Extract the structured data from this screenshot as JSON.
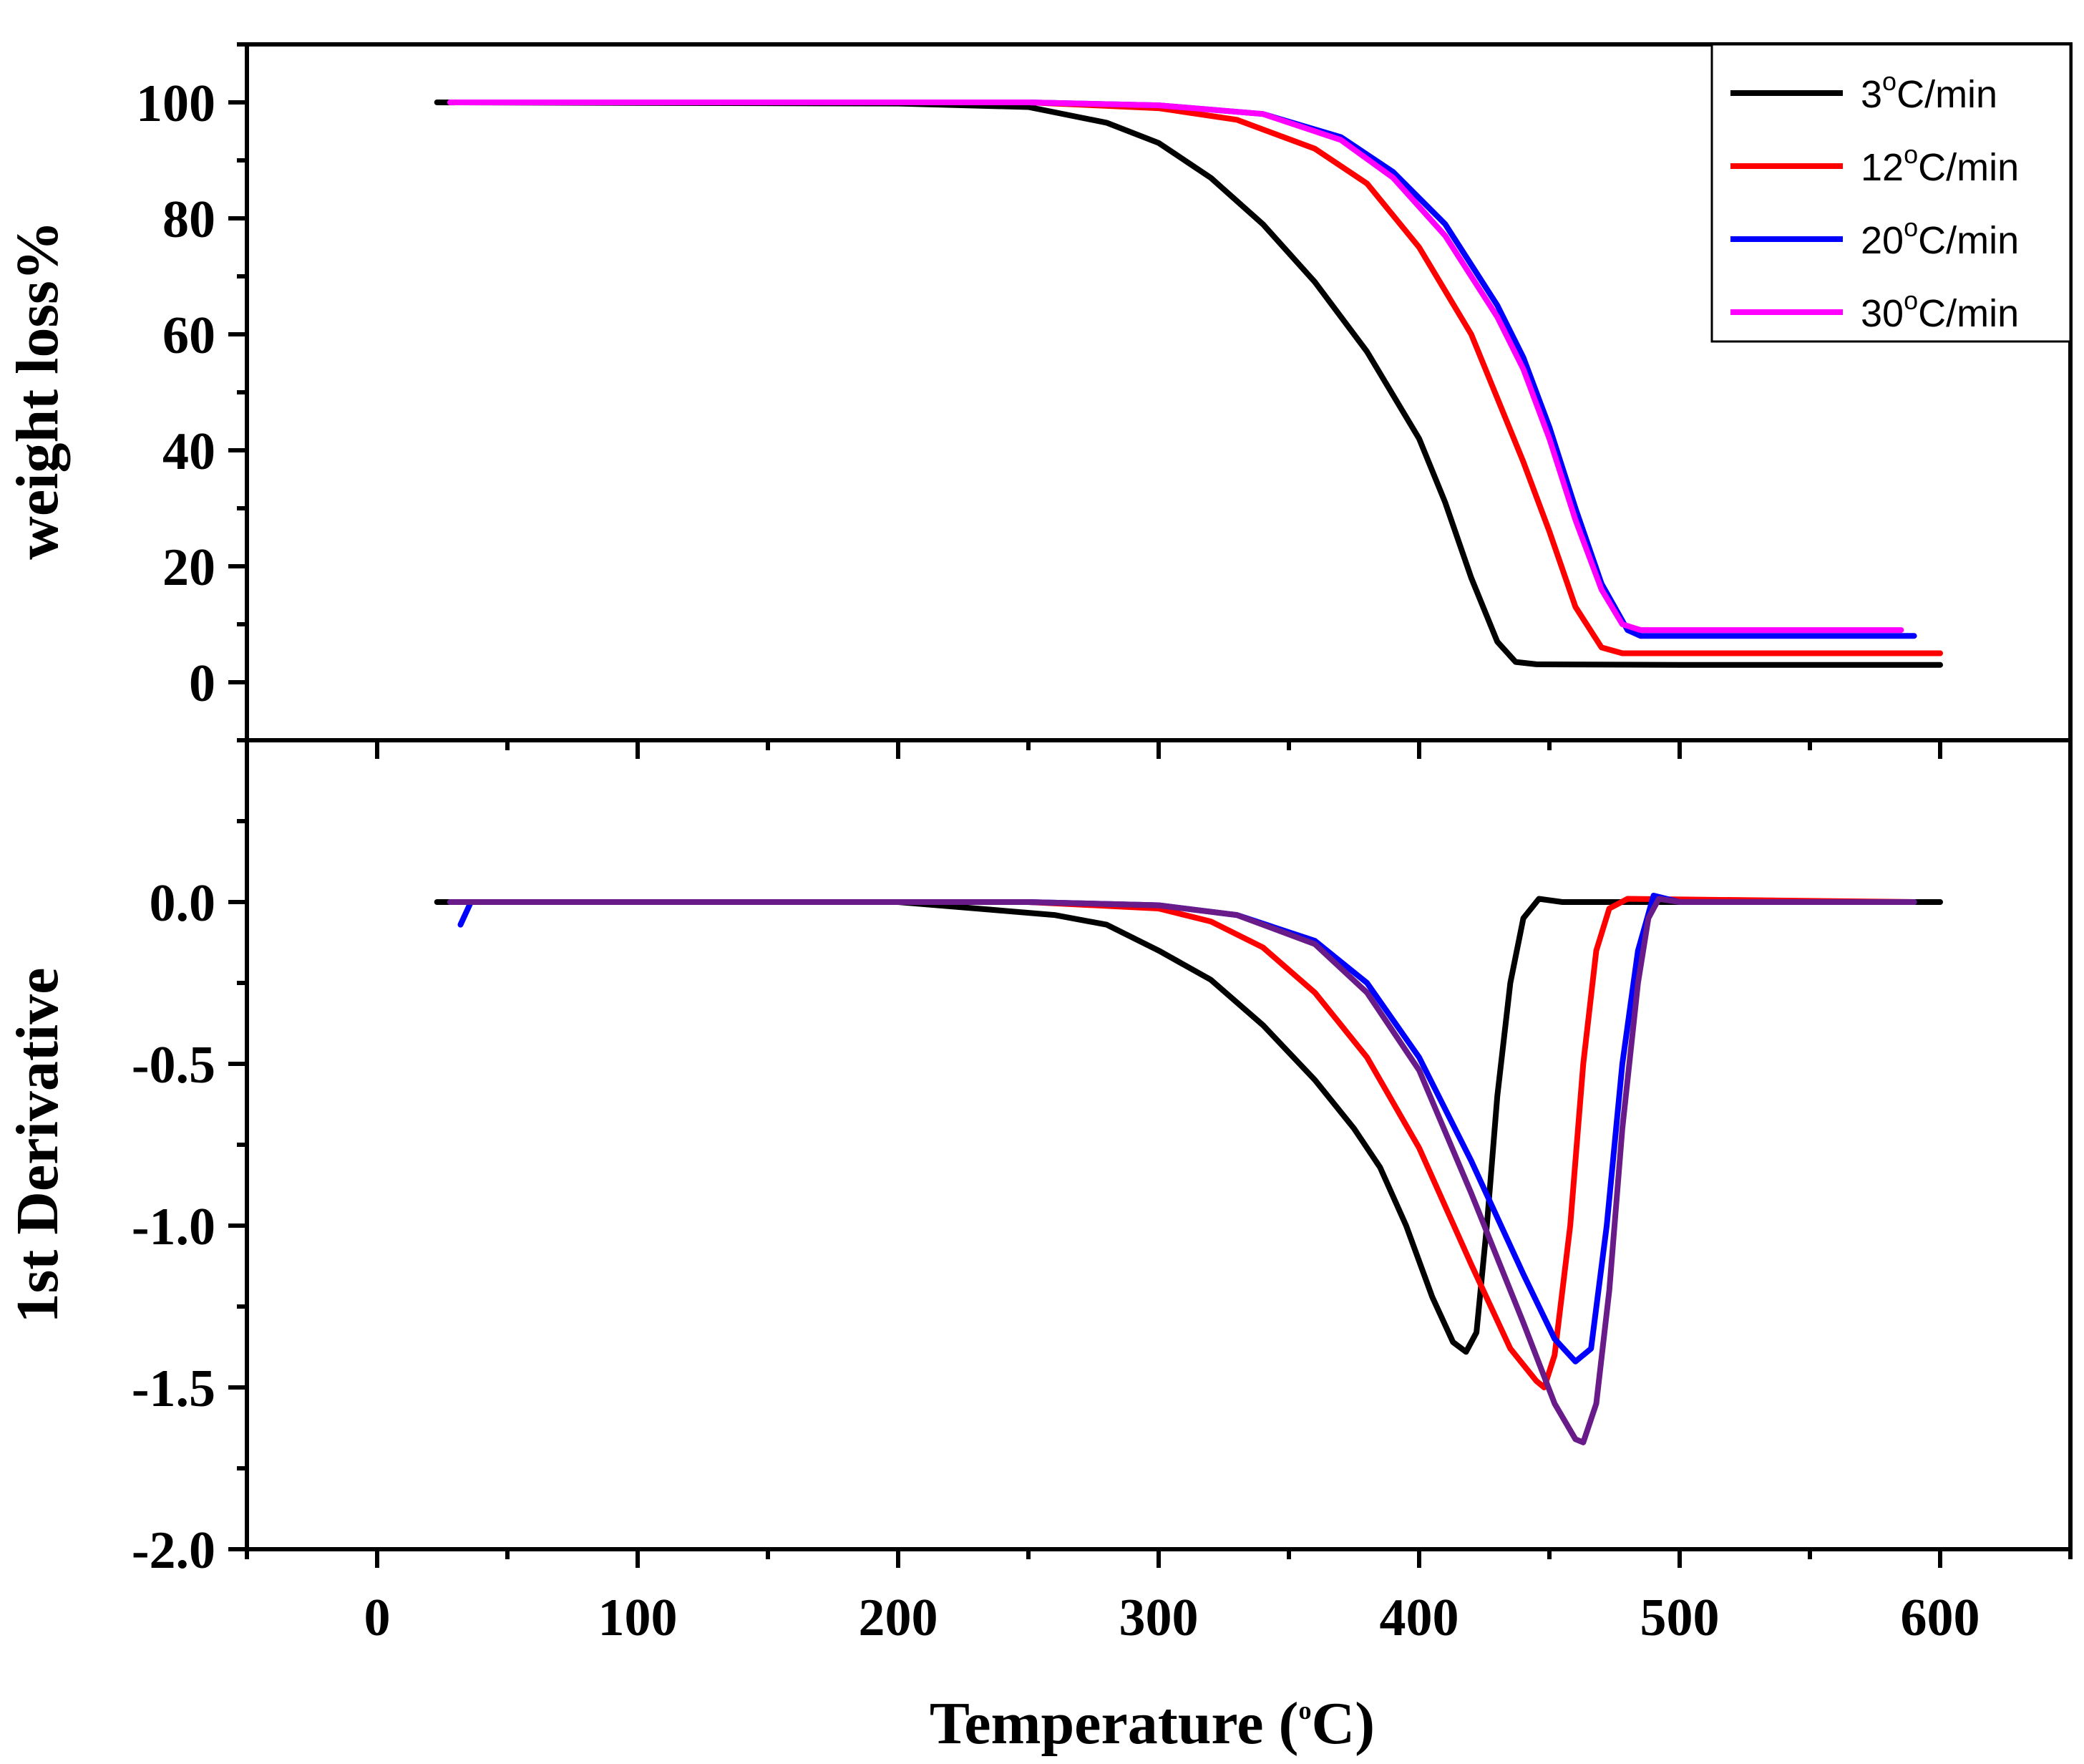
{
  "chart_data": [
    {
      "type": "line",
      "panel": "top",
      "ylabel": "weight loss%",
      "ylim": [
        -10,
        110
      ],
      "xlim": [
        -50,
        650
      ],
      "yticks": [
        "0",
        "20",
        "40",
        "60",
        "80",
        "100"
      ],
      "legend": {
        "placement": "top-right",
        "entries": [
          {
            "prefix": "3",
            "sup": "o",
            "suffix": "C/min"
          },
          {
            "prefix": "12",
            "sup": "o",
            "suffix": "C/min"
          },
          {
            "prefix": "20",
            "sup": "o",
            "suffix": "C/min"
          },
          {
            "prefix": "30",
            "sup": "o",
            "suffix": "C/min"
          }
        ]
      },
      "series": [
        {
          "name": "3°C/min",
          "color": "#000000",
          "points": [
            [
              23,
              100
            ],
            [
              200,
              99.8
            ],
            [
              250,
              99.2
            ],
            [
              280,
              96.5
            ],
            [
              300,
              93
            ],
            [
              320,
              87
            ],
            [
              340,
              79
            ],
            [
              360,
              69
            ],
            [
              380,
              57
            ],
            [
              400,
              42
            ],
            [
              410,
              31
            ],
            [
              420,
              18
            ],
            [
              430,
              7
            ],
            [
              437,
              3.5
            ],
            [
              445,
              3.1
            ],
            [
              500,
              3
            ],
            [
              600,
              3
            ]
          ]
        },
        {
          "name": "12°C/min",
          "color": "#ff0000",
          "points": [
            [
              30,
              100
            ],
            [
              250,
              100
            ],
            [
              300,
              99
            ],
            [
              330,
              97
            ],
            [
              360,
              92
            ],
            [
              380,
              86
            ],
            [
              400,
              75
            ],
            [
              420,
              60
            ],
            [
              430,
              49
            ],
            [
              440,
              38
            ],
            [
              450,
              26
            ],
            [
              460,
              13
            ],
            [
              470,
              6
            ],
            [
              478,
              5
            ],
            [
              600,
              5
            ]
          ]
        },
        {
          "name": "20°C/min",
          "color": "#0000ff",
          "points": [
            [
              33,
              100
            ],
            [
              250,
              100
            ],
            [
              300,
              99.5
            ],
            [
              340,
              98
            ],
            [
              370,
              94
            ],
            [
              390,
              88
            ],
            [
              410,
              79
            ],
            [
              430,
              65
            ],
            [
              440,
              56
            ],
            [
              450,
              44
            ],
            [
              460,
              30
            ],
            [
              470,
              17
            ],
            [
              480,
              9
            ],
            [
              485,
              8
            ],
            [
              590,
              8
            ]
          ]
        },
        {
          "name": "30°C/min",
          "color": "#ff00ff",
          "points": [
            [
              28,
              100
            ],
            [
              250,
              100
            ],
            [
              300,
              99.5
            ],
            [
              340,
              98
            ],
            [
              370,
              93.5
            ],
            [
              390,
              87
            ],
            [
              410,
              77
            ],
            [
              430,
              63
            ],
            [
              440,
              54
            ],
            [
              450,
              42
            ],
            [
              460,
              28
            ],
            [
              470,
              16
            ],
            [
              478,
              10
            ],
            [
              485,
              9
            ],
            [
              585,
              9
            ]
          ]
        }
      ]
    },
    {
      "type": "line",
      "panel": "bottom",
      "ylabel": "1st Derivative",
      "xlabel_prefix": "Temperature (",
      "xlabel_sup": "o",
      "xlabel_suffix": "C)",
      "ylim": [
        -2.0,
        0.5
      ],
      "xlim": [
        -50,
        650
      ],
      "yticks": [
        "-2.0",
        "-1.5",
        "-1.0",
        "-0.5",
        "0.0"
      ],
      "xticks": [
        "0",
        "100",
        "200",
        "300",
        "400",
        "500",
        "600"
      ],
      "series": [
        {
          "name": "3°C/min",
          "color": "#000000",
          "points": [
            [
              23,
              0
            ],
            [
              200,
              0
            ],
            [
              230,
              -0.02
            ],
            [
              260,
              -0.04
            ],
            [
              280,
              -0.07
            ],
            [
              300,
              -0.15
            ],
            [
              320,
              -0.24
            ],
            [
              340,
              -0.38
            ],
            [
              360,
              -0.55
            ],
            [
              375,
              -0.7
            ],
            [
              385,
              -0.82
            ],
            [
              395,
              -1.0
            ],
            [
              405,
              -1.22
            ],
            [
              413,
              -1.36
            ],
            [
              418,
              -1.39
            ],
            [
              422,
              -1.33
            ],
            [
              426,
              -1.0
            ],
            [
              430,
              -0.6
            ],
            [
              435,
              -0.25
            ],
            [
              440,
              -0.05
            ],
            [
              446,
              0.01
            ],
            [
              455,
              0
            ],
            [
              600,
              0
            ]
          ]
        },
        {
          "name": "12°C/min",
          "color": "#ff0000",
          "points": [
            [
              30,
              0
            ],
            [
              250,
              0
            ],
            [
              300,
              -0.02
            ],
            [
              320,
              -0.06
            ],
            [
              340,
              -0.14
            ],
            [
              360,
              -0.28
            ],
            [
              380,
              -0.48
            ],
            [
              400,
              -0.76
            ],
            [
              420,
              -1.12
            ],
            [
              435,
              -1.38
            ],
            [
              445,
              -1.48
            ],
            [
              448,
              -1.5
            ],
            [
              452,
              -1.4
            ],
            [
              458,
              -1.0
            ],
            [
              463,
              -0.5
            ],
            [
              468,
              -0.15
            ],
            [
              473,
              -0.02
            ],
            [
              480,
              0.01
            ],
            [
              590,
              0
            ]
          ]
        },
        {
          "name": "20°C/min",
          "color": "#0000ff",
          "points": [
            [
              32,
              -0.07
            ],
            [
              36,
              0
            ],
            [
              250,
              0
            ],
            [
              300,
              -0.01
            ],
            [
              330,
              -0.04
            ],
            [
              360,
              -0.12
            ],
            [
              380,
              -0.25
            ],
            [
              400,
              -0.48
            ],
            [
              420,
              -0.8
            ],
            [
              440,
              -1.15
            ],
            [
              452,
              -1.35
            ],
            [
              460,
              -1.42
            ],
            [
              466,
              -1.38
            ],
            [
              472,
              -1.0
            ],
            [
              478,
              -0.5
            ],
            [
              484,
              -0.15
            ],
            [
              490,
              0.02
            ],
            [
              500,
              0
            ],
            [
              590,
              0
            ]
          ]
        },
        {
          "name": "30°C/min",
          "color": "#6a1b8a",
          "points": [
            [
              28,
              0
            ],
            [
              250,
              0
            ],
            [
              300,
              -0.01
            ],
            [
              330,
              -0.04
            ],
            [
              360,
              -0.13
            ],
            [
              380,
              -0.28
            ],
            [
              400,
              -0.52
            ],
            [
              420,
              -0.9
            ],
            [
              440,
              -1.3
            ],
            [
              452,
              -1.55
            ],
            [
              460,
              -1.66
            ],
            [
              463,
              -1.67
            ],
            [
              468,
              -1.55
            ],
            [
              473,
              -1.2
            ],
            [
              478,
              -0.7
            ],
            [
              484,
              -0.25
            ],
            [
              488,
              -0.05
            ],
            [
              492,
              0.01
            ],
            [
              500,
              0
            ],
            [
              590,
              0
            ]
          ]
        }
      ]
    }
  ]
}
